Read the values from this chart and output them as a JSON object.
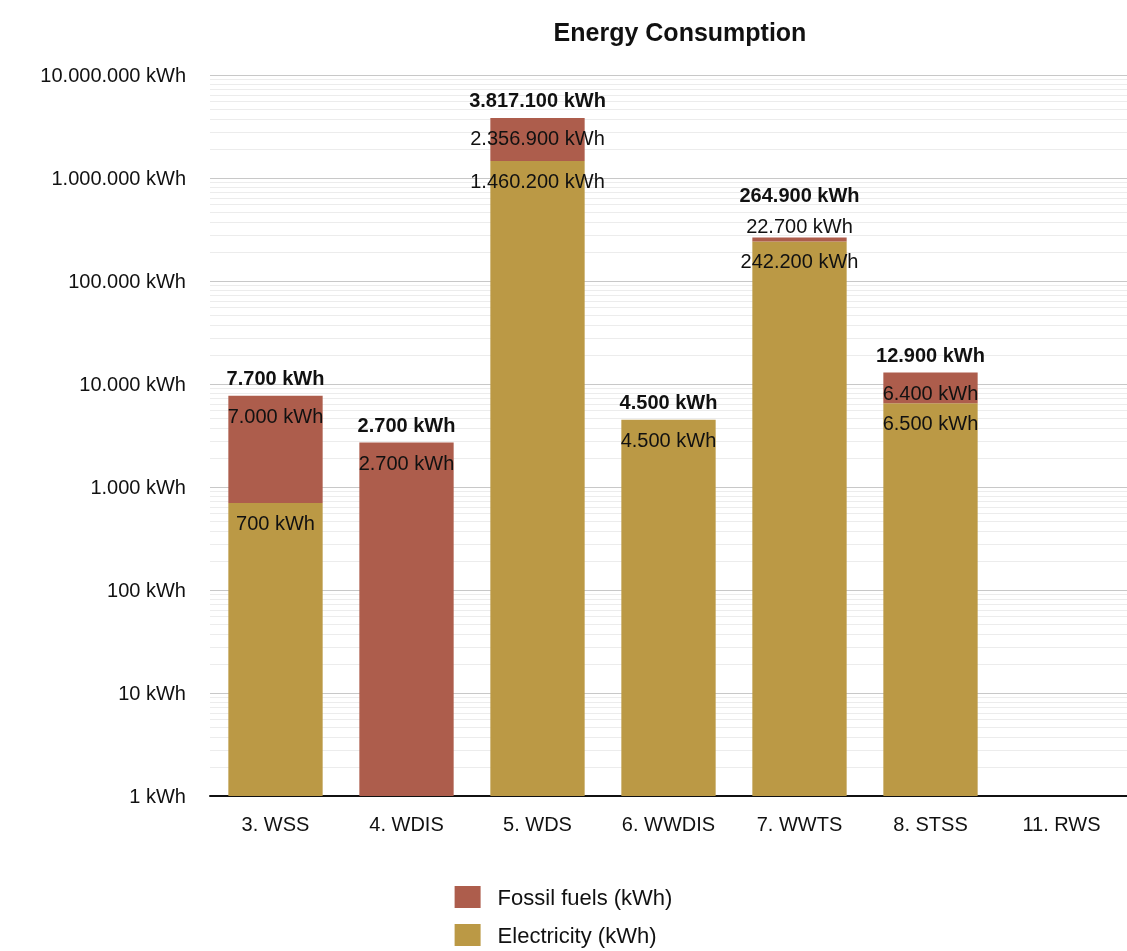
{
  "chart_data": {
    "type": "bar",
    "title": "Energy Consumption",
    "stacked": true,
    "log": "y",
    "grid": "y",
    "legend": "bottom",
    "categories": [
      "3. WSS",
      "4. WDIS",
      "5. WDS",
      "6. WWDIS",
      "7. WWTS",
      "8. STSS",
      "11. RWS"
    ],
    "ylim": [
      1,
      10000000
    ],
    "yticks": [
      {
        "value": 1,
        "label": "1 kWh"
      },
      {
        "value": 10,
        "label": "10 kWh"
      },
      {
        "value": 100,
        "label": "100 kWh"
      },
      {
        "value": 1000,
        "label": "1.000 kWh"
      },
      {
        "value": 10000,
        "label": "10.000 kWh"
      },
      {
        "value": 100000,
        "label": "100.000 kWh"
      },
      {
        "value": 1000000,
        "label": "1.000.000 kWh"
      },
      {
        "value": 10000000,
        "label": "10.000.000 kWh"
      }
    ],
    "series": [
      {
        "name": "Electricity (kWh)",
        "color": "#bb9945",
        "values": [
          700,
          null,
          1460200,
          4500,
          242200,
          6500,
          null
        ],
        "value_labels": [
          "700 kWh",
          null,
          "1.460.200 kWh",
          "4.500 kWh",
          "242.200 kWh",
          "6.500 kWh",
          null
        ]
      },
      {
        "name": "Fossil fuels (kWh)",
        "color": "#ad5d4c",
        "values": [
          7000,
          2700,
          2356900,
          null,
          22700,
          6400,
          null
        ],
        "value_labels": [
          "7.000 kWh",
          "2.700 kWh",
          "2.356.900 kWh",
          null,
          "22.700 kWh",
          "6.400 kWh",
          null
        ]
      }
    ],
    "totals": [
      "7.700 kWh",
      "2.700 kWh",
      "3.817.100 kWh",
      "4.500 kWh",
      "264.900 kWh",
      "12.900 kWh",
      null
    ]
  }
}
